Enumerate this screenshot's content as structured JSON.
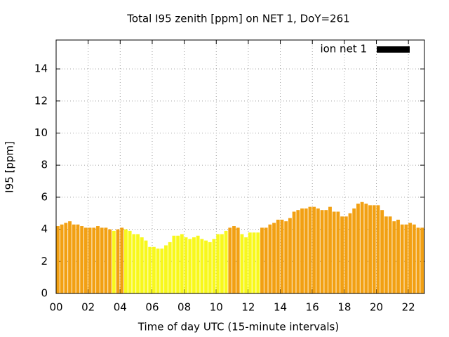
{
  "chart_data": {
    "type": "bar",
    "title": "Total I95 zenith [ppm] on NET 1, DoY=261",
    "x_label": "Time of day UTC (15-minute intervals)",
    "y_label": "I95 [ppm]",
    "x": [
      0,
      0.25,
      0.5,
      0.75,
      1,
      1.25,
      1.5,
      1.75,
      2,
      2.25,
      2.5,
      2.75,
      3,
      3.25,
      3.5,
      3.75,
      4,
      4.25,
      4.5,
      4.75,
      5,
      5.25,
      5.5,
      5.75,
      6,
      6.25,
      6.5,
      6.75,
      7,
      7.25,
      7.5,
      7.75,
      8,
      8.25,
      8.5,
      8.75,
      9,
      9.25,
      9.5,
      9.75,
      10,
      10.25,
      10.5,
      10.75,
      11,
      11.25,
      11.5,
      11.75,
      12,
      12.25,
      12.5,
      12.75,
      13,
      13.25,
      13.5,
      13.75,
      14,
      14.25,
      14.5,
      14.75,
      15,
      15.25,
      15.5,
      15.75,
      16,
      16.25,
      16.5,
      16.75,
      17,
      17.25,
      17.5,
      17.75,
      18,
      18.25,
      18.5,
      18.75,
      19,
      19.25,
      19.5,
      19.75,
      20,
      20.25,
      20.5,
      20.75,
      21,
      21.25,
      21.5,
      21.75,
      22,
      22.25,
      22.5,
      22.75
    ],
    "series": [
      {
        "name": "ion net 1",
        "color": "#000000",
        "values": [
          4.2,
          4.3,
          4.4,
          4.5,
          4.3,
          4.3,
          4.2,
          4.1,
          4.1,
          4.1,
          4.2,
          4.1,
          4.1,
          4.0,
          3.9,
          4.0,
          4.1,
          4.0,
          3.9,
          3.7,
          3.7,
          3.5,
          3.3,
          2.9,
          2.9,
          2.8,
          2.8,
          3.0,
          3.2,
          3.6,
          3.6,
          3.7,
          3.5,
          3.4,
          3.5,
          3.6,
          3.4,
          3.3,
          3.2,
          3.4,
          3.7,
          3.7,
          3.9,
          4.1,
          4.2,
          4.1,
          3.7,
          3.5,
          3.8,
          3.8,
          3.8,
          4.1,
          4.1,
          4.3,
          4.4,
          4.6,
          4.6,
          4.5,
          4.7,
          5.1,
          5.2,
          5.3,
          5.3,
          5.4,
          5.4,
          5.3,
          5.2,
          5.2,
          5.4,
          5.1,
          5.1,
          4.8,
          4.8,
          5.0,
          5.3,
          5.6,
          5.7,
          5.6,
          5.5,
          5.5,
          5.5,
          5.2,
          4.8,
          4.8,
          4.5,
          4.6,
          4.3,
          4.3,
          4.4,
          4.3,
          4.1,
          4.1
        ],
        "colors": [
          "#f2a012",
          "#f2a012",
          "#f2a012",
          "#f2a012",
          "#f2a012",
          "#f2a012",
          "#f2a012",
          "#f2a012",
          "#f2a012",
          "#f2a012",
          "#f2a012",
          "#f2a012",
          "#f2a012",
          "#f2a012",
          "#f8f81c",
          "#f2a012",
          "#f2a012",
          "#f8f81c",
          "#f8f81c",
          "#f8f81c",
          "#f8f81c",
          "#f8f81c",
          "#f8f81c",
          "#f8f81c",
          "#f8f81c",
          "#f8f81c",
          "#f8f81c",
          "#f8f81c",
          "#f8f81c",
          "#f8f81c",
          "#f8f81c",
          "#f8f81c",
          "#f8f81c",
          "#f8f81c",
          "#f8f81c",
          "#f8f81c",
          "#f8f81c",
          "#f8f81c",
          "#f8f81c",
          "#f8f81c",
          "#f8f81c",
          "#f8f81c",
          "#f8f81c",
          "#f2a012",
          "#f2a012",
          "#f2a012",
          "#f8f81c",
          "#f8f81c",
          "#f8f81c",
          "#f8f81c",
          "#f8f81c",
          "#f2a012",
          "#f2a012",
          "#f2a012",
          "#f2a012",
          "#f2a012",
          "#f2a012",
          "#f2a012",
          "#f2a012",
          "#f2a012",
          "#f2a012",
          "#f2a012",
          "#f2a012",
          "#f2a012",
          "#f2a012",
          "#f2a012",
          "#f2a012",
          "#f2a012",
          "#f2a012",
          "#f2a012",
          "#f2a012",
          "#f2a012",
          "#f2a012",
          "#f2a012",
          "#f2a012",
          "#f2a012",
          "#f2a012",
          "#f2a012",
          "#f2a012",
          "#f2a012",
          "#f2a012",
          "#f2a012",
          "#f2a012",
          "#f2a012",
          "#f2a012",
          "#f2a012",
          "#f2a012",
          "#f2a012",
          "#f2a012",
          "#f2a012",
          "#f2a012",
          "#f2a012"
        ]
      }
    ],
    "bar_width": 0.25,
    "xlim": [
      0,
      23
    ],
    "xticks": [
      {
        "value": 0,
        "label": "00"
      },
      {
        "value": 2,
        "label": "02"
      },
      {
        "value": 4,
        "label": "04"
      },
      {
        "value": 6,
        "label": "06"
      },
      {
        "value": 8,
        "label": "08"
      },
      {
        "value": 10,
        "label": "10"
      },
      {
        "value": 12,
        "label": "12"
      },
      {
        "value": 14,
        "label": "14"
      },
      {
        "value": 16,
        "label": "16"
      },
      {
        "value": 18,
        "label": "18"
      },
      {
        "value": 20,
        "label": "20"
      },
      {
        "value": 22,
        "label": "22"
      }
    ],
    "ylim": [
      0,
      15.8
    ],
    "yticks": [
      0,
      2,
      4,
      6,
      8,
      10,
      12,
      14
    ],
    "grid": true,
    "legend": "top-right"
  }
}
